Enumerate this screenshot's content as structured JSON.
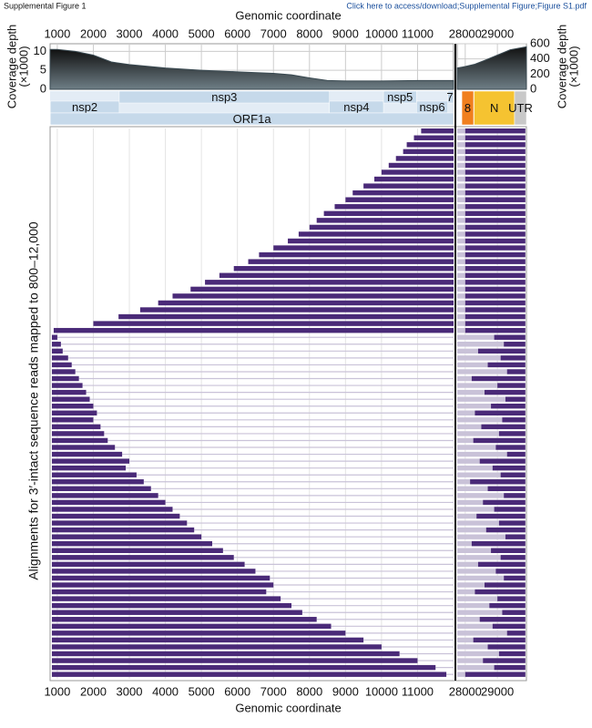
{
  "header": {
    "title": "Supplemental Figure 1",
    "link": "Click here to access/download;Supplemental Figure;Figure S1.pdf"
  },
  "chart_data": [
    {
      "type": "area",
      "xlabel": "Genomic coordinate",
      "ylabel": [
        "Coverage depth",
        "(×1000)"
      ],
      "xlim": [
        800,
        12000
      ],
      "xticks": [
        1000,
        2000,
        3000,
        4000,
        5000,
        6000,
        7000,
        8000,
        9000,
        10000,
        11000
      ],
      "ylim": [
        0,
        12
      ],
      "yticks": [
        0,
        5,
        10
      ],
      "color": "#3a4a52",
      "x": [
        800,
        1000,
        1500,
        2000,
        2500,
        3000,
        4000,
        5000,
        6000,
        7000,
        7500,
        8000,
        8500,
        9000,
        10000,
        11000,
        12000
      ],
      "values": [
        10.5,
        10.5,
        10,
        9,
        7.2,
        6.5,
        5.6,
        5,
        4.6,
        4.2,
        3.8,
        3,
        2.3,
        2.2,
        2.2,
        2.3,
        2.3
      ]
    },
    {
      "type": "area",
      "axis": "y2",
      "ylabel": [
        "Coverage depth",
        "(×1000)"
      ],
      "xlim": [
        27750,
        29903
      ],
      "xticks": [
        28000,
        29000
      ],
      "y2lim": [
        0,
        600
      ],
      "y2ticks": [
        0,
        200,
        400,
        600
      ],
      "color": "#3a4a52",
      "x": [
        27750,
        28000,
        28300,
        28600,
        29000,
        29400,
        29903
      ],
      "values": [
        280,
        300,
        330,
        380,
        450,
        520,
        560
      ]
    },
    {
      "type": "genes",
      "genes": [
        {
          "name": "nsp2",
          "start": 806,
          "end": 2719,
          "row": 1,
          "color": "#c6d9ea"
        },
        {
          "name": "nsp3",
          "start": 2720,
          "end": 8554,
          "row": 0,
          "color": "#c6d9ea"
        },
        {
          "name": "nsp4",
          "start": 8555,
          "end": 10054,
          "row": 1,
          "color": "#c6d9ea"
        },
        {
          "name": "nsp5",
          "start": 10055,
          "end": 10972,
          "row": 0,
          "color": "#c6d9ea"
        },
        {
          "name": "nsp6",
          "start": 10973,
          "end": 11842,
          "row": 1,
          "color": "#c6d9ea"
        },
        {
          "name": "7",
          "start": 11843,
          "end": 12000,
          "row": 0,
          "color": "#c6d9ea"
        },
        {
          "name": "ORF1a",
          "start": 806,
          "end": 12000,
          "row": 2,
          "color": "#c6d9ea"
        },
        {
          "name": "8",
          "start": 27894,
          "end": 28259,
          "row": 3,
          "color": "#f07f1e"
        },
        {
          "name": "N",
          "start": 28274,
          "end": 29533,
          "row": 3,
          "color": "#f5c331"
        },
        {
          "name": "UTR",
          "start": 29534,
          "end": 29903,
          "row": 3,
          "color": "#c8c8c8"
        }
      ]
    },
    {
      "type": "alignment",
      "xlabel": "Genomic coordinate",
      "ylabel": "Alignments for 3′-intact sequence reads mapped to 800–12,000",
      "color": "#4a2a78",
      "groups": [
        {
          "start": [
            11100,
            10900,
            10700,
            10600,
            10400,
            10200,
            10000,
            9800,
            9500,
            9200,
            9000,
            8700,
            8400,
            8200,
            8000,
            7700,
            7400,
            7000,
            6600,
            6300,
            5900,
            5500,
            5100,
            4700,
            4200,
            3800,
            3300,
            2700,
            2000,
            900
          ],
          "end": [
            12000,
            12000,
            12000,
            12000,
            12000,
            12000,
            12000,
            12000,
            12000,
            12000,
            12000,
            12000,
            12000,
            12000,
            12000,
            12000,
            12000,
            12000,
            12000,
            12000,
            12000,
            12000,
            12000,
            12000,
            12000,
            12000,
            12000,
            12000,
            12000,
            12000
          ],
          "right_start": [
            28000,
            28000,
            28000,
            28000,
            28000,
            28000,
            28000,
            28000,
            28000,
            28000,
            28000,
            28000,
            28000,
            28000,
            28000,
            28000,
            28000,
            28000,
            28000,
            28000,
            28000,
            28000,
            28000,
            28000,
            28000,
            28000,
            28000,
            28000,
            28000,
            28000
          ],
          "right_end": [
            29870,
            29870,
            29870,
            29870,
            29870,
            29870,
            29870,
            29870,
            29870,
            29870,
            29870,
            29870,
            29870,
            29870,
            29870,
            29870,
            29870,
            29870,
            29870,
            29870,
            29870,
            29870,
            29870,
            29870,
            29870,
            29870,
            29870,
            29870,
            29870,
            29870
          ]
        },
        {
          "start": [
            850,
            850,
            850,
            850,
            850,
            850,
            850,
            850,
            850,
            850,
            850,
            850,
            850,
            850,
            850,
            850,
            850,
            850,
            850,
            850,
            850,
            850,
            850,
            850,
            850,
            850,
            850,
            850,
            850,
            850,
            850,
            850,
            850,
            850,
            850,
            850,
            850,
            850,
            850,
            850,
            850,
            850,
            850,
            850,
            850,
            850,
            850,
            850,
            850,
            850
          ],
          "end": [
            1000,
            1100,
            1150,
            1300,
            1400,
            1500,
            1600,
            1700,
            1800,
            1900,
            2000,
            2100,
            2000,
            2200,
            2300,
            2400,
            2600,
            2800,
            3000,
            2900,
            3200,
            3400,
            3600,
            3800,
            4000,
            4200,
            4400,
            4600,
            4800,
            5000,
            5300,
            5600,
            5900,
            6200,
            6500,
            6900,
            7000,
            6800,
            7200,
            7500,
            7800,
            8200,
            8600,
            9000,
            9500,
            10000,
            10500,
            11000,
            11500,
            11800
          ],
          "right_start": [
            28900,
            29200,
            28400,
            29100,
            28700,
            29300,
            28200,
            29000,
            28600,
            29250,
            28800,
            28300,
            29150,
            28500,
            29050,
            28250,
            28950,
            29300,
            28450,
            28850,
            29100,
            28150,
            28700,
            29200,
            28550,
            28900,
            28350,
            29050,
            28650,
            29250,
            28200,
            28800,
            29100,
            28400,
            28950,
            29200,
            28600,
            28300,
            29000,
            28750,
            29150,
            28450,
            28850,
            29300,
            28250,
            28700,
            29050,
            28550,
            28900,
            28000
          ],
          "right_end": [
            29870,
            29870,
            29870,
            29870,
            29870,
            29870,
            29870,
            29870,
            29870,
            29870,
            29870,
            29870,
            29870,
            29870,
            29870,
            29870,
            29870,
            29870,
            29870,
            29870,
            29870,
            29870,
            29870,
            29870,
            29870,
            29870,
            29870,
            29870,
            29870,
            29870,
            29870,
            29870,
            29870,
            29870,
            29870,
            29870,
            29870,
            29870,
            29870,
            29870,
            29870,
            29870,
            29870,
            29870,
            29870,
            29870,
            29870,
            29870,
            29870,
            29870
          ]
        }
      ]
    }
  ]
}
